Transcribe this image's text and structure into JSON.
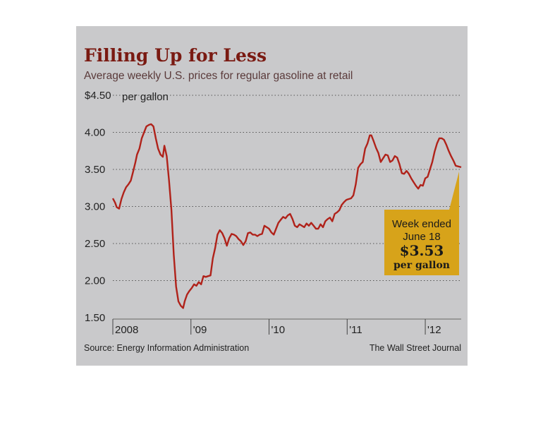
{
  "chart_data": {
    "type": "line",
    "title": "Filling Up for Less",
    "subtitle": "Average weekly U.S. prices for regular gasoline at retail",
    "y_unit_label": "per gallon",
    "y_ticks": [
      "$4.50",
      "4.00",
      "3.50",
      "3.00",
      "2.50",
      "2.00",
      "1.50"
    ],
    "x_ticks": [
      {
        "label": "2008",
        "x": 2008.0
      },
      {
        "label": "'09",
        "x": 2009.0
      },
      {
        "label": "'10",
        "x": 2010.0
      },
      {
        "label": "'11",
        "x": 2011.0
      },
      {
        "label": "'12",
        "x": 2012.0
      }
    ],
    "ylim": [
      1.5,
      4.5
    ],
    "xlim": [
      2008.0,
      2012.46
    ],
    "grid": "horizontal dotted",
    "series": [
      {
        "color": "#b0221a",
        "points": [
          [
            2008.0,
            3.11
          ],
          [
            2008.03,
            3.05
          ],
          [
            2008.05,
            2.99
          ],
          [
            2008.08,
            2.97
          ],
          [
            2008.11,
            3.1
          ],
          [
            2008.14,
            3.19
          ],
          [
            2008.17,
            3.26
          ],
          [
            2008.2,
            3.3
          ],
          [
            2008.23,
            3.35
          ],
          [
            2008.26,
            3.47
          ],
          [
            2008.29,
            3.6
          ],
          [
            2008.31,
            3.7
          ],
          [
            2008.34,
            3.78
          ],
          [
            2008.37,
            3.92
          ],
          [
            2008.4,
            4.0
          ],
          [
            2008.43,
            4.08
          ],
          [
            2008.46,
            4.1
          ],
          [
            2008.49,
            4.11
          ],
          [
            2008.52,
            4.08
          ],
          [
            2008.55,
            3.92
          ],
          [
            2008.58,
            3.78
          ],
          [
            2008.61,
            3.7
          ],
          [
            2008.64,
            3.67
          ],
          [
            2008.66,
            3.82
          ],
          [
            2008.69,
            3.68
          ],
          [
            2008.72,
            3.35
          ],
          [
            2008.75,
            2.95
          ],
          [
            2008.78,
            2.35
          ],
          [
            2008.81,
            1.92
          ],
          [
            2008.84,
            1.72
          ],
          [
            2008.87,
            1.66
          ],
          [
            2008.9,
            1.63
          ],
          [
            2008.92,
            1.72
          ],
          [
            2008.95,
            1.81
          ],
          [
            2008.98,
            1.86
          ],
          [
            2009.01,
            1.9
          ],
          [
            2009.04,
            1.95
          ],
          [
            2009.07,
            1.93
          ],
          [
            2009.1,
            1.98
          ],
          [
            2009.13,
            1.95
          ],
          [
            2009.16,
            2.06
          ],
          [
            2009.19,
            2.05
          ],
          [
            2009.22,
            2.06
          ],
          [
            2009.25,
            2.07
          ],
          [
            2009.28,
            2.3
          ],
          [
            2009.31,
            2.44
          ],
          [
            2009.34,
            2.62
          ],
          [
            2009.37,
            2.68
          ],
          [
            2009.4,
            2.64
          ],
          [
            2009.43,
            2.57
          ],
          [
            2009.46,
            2.47
          ],
          [
            2009.49,
            2.57
          ],
          [
            2009.52,
            2.63
          ],
          [
            2009.55,
            2.62
          ],
          [
            2009.58,
            2.6
          ],
          [
            2009.61,
            2.56
          ],
          [
            2009.64,
            2.53
          ],
          [
            2009.67,
            2.48
          ],
          [
            2009.7,
            2.53
          ],
          [
            2009.73,
            2.64
          ],
          [
            2009.76,
            2.65
          ],
          [
            2009.79,
            2.62
          ],
          [
            2009.82,
            2.62
          ],
          [
            2009.85,
            2.6
          ],
          [
            2009.88,
            2.62
          ],
          [
            2009.91,
            2.63
          ],
          [
            2009.94,
            2.74
          ],
          [
            2009.97,
            2.72
          ],
          [
            2010.0,
            2.7
          ],
          [
            2010.03,
            2.65
          ],
          [
            2010.06,
            2.62
          ],
          [
            2010.09,
            2.7
          ],
          [
            2010.12,
            2.78
          ],
          [
            2010.15,
            2.82
          ],
          [
            2010.18,
            2.86
          ],
          [
            2010.21,
            2.84
          ],
          [
            2010.24,
            2.88
          ],
          [
            2010.27,
            2.9
          ],
          [
            2010.3,
            2.83
          ],
          [
            2010.33,
            2.74
          ],
          [
            2010.36,
            2.72
          ],
          [
            2010.39,
            2.76
          ],
          [
            2010.42,
            2.74
          ],
          [
            2010.45,
            2.72
          ],
          [
            2010.48,
            2.77
          ],
          [
            2010.51,
            2.74
          ],
          [
            2010.54,
            2.78
          ],
          [
            2010.57,
            2.74
          ],
          [
            2010.6,
            2.7
          ],
          [
            2010.63,
            2.7
          ],
          [
            2010.66,
            2.76
          ],
          [
            2010.69,
            2.72
          ],
          [
            2010.72,
            2.8
          ],
          [
            2010.75,
            2.83
          ],
          [
            2010.78,
            2.85
          ],
          [
            2010.81,
            2.8
          ],
          [
            2010.84,
            2.9
          ],
          [
            2010.87,
            2.92
          ],
          [
            2010.9,
            2.95
          ],
          [
            2010.93,
            3.02
          ],
          [
            2010.96,
            3.06
          ],
          [
            2010.99,
            3.09
          ],
          [
            2011.02,
            3.1
          ],
          [
            2011.05,
            3.11
          ],
          [
            2011.08,
            3.15
          ],
          [
            2011.11,
            3.3
          ],
          [
            2011.14,
            3.52
          ],
          [
            2011.17,
            3.57
          ],
          [
            2011.2,
            3.6
          ],
          [
            2011.23,
            3.78
          ],
          [
            2011.26,
            3.85
          ],
          [
            2011.29,
            3.96
          ],
          [
            2011.31,
            3.96
          ],
          [
            2011.34,
            3.88
          ],
          [
            2011.37,
            3.79
          ],
          [
            2011.4,
            3.72
          ],
          [
            2011.43,
            3.6
          ],
          [
            2011.46,
            3.65
          ],
          [
            2011.49,
            3.7
          ],
          [
            2011.52,
            3.69
          ],
          [
            2011.55,
            3.6
          ],
          [
            2011.58,
            3.62
          ],
          [
            2011.61,
            3.68
          ],
          [
            2011.64,
            3.66
          ],
          [
            2011.67,
            3.57
          ],
          [
            2011.7,
            3.45
          ],
          [
            2011.73,
            3.44
          ],
          [
            2011.76,
            3.48
          ],
          [
            2011.79,
            3.44
          ],
          [
            2011.82,
            3.38
          ],
          [
            2011.85,
            3.33
          ],
          [
            2011.88,
            3.28
          ],
          [
            2011.91,
            3.24
          ],
          [
            2011.94,
            3.29
          ],
          [
            2011.97,
            3.28
          ],
          [
            2012.0,
            3.38
          ],
          [
            2012.03,
            3.4
          ],
          [
            2012.06,
            3.5
          ],
          [
            2012.09,
            3.6
          ],
          [
            2012.12,
            3.74
          ],
          [
            2012.15,
            3.85
          ],
          [
            2012.18,
            3.92
          ],
          [
            2012.21,
            3.92
          ],
          [
            2012.24,
            3.9
          ],
          [
            2012.27,
            3.83
          ],
          [
            2012.3,
            3.75
          ],
          [
            2012.33,
            3.68
          ],
          [
            2012.36,
            3.62
          ],
          [
            2012.39,
            3.55
          ],
          [
            2012.46,
            3.53
          ]
        ]
      }
    ],
    "callout": {
      "line1": "Week ended",
      "line2": "June 18",
      "value": "$3.53",
      "unit": "per gallon",
      "fill_color": "#d7a31a"
    },
    "source": "Source: Energy Information Administration",
    "credit": "The Wall Street Journal"
  }
}
